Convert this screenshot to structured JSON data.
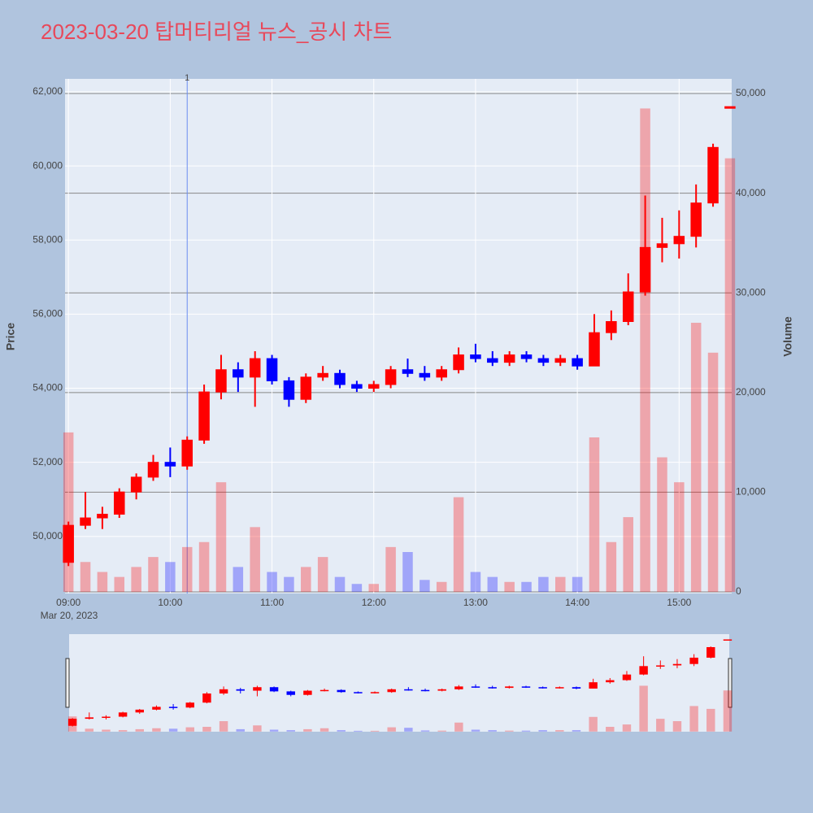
{
  "chart_data": {
    "type": "candlestick",
    "title": "2023-03-20 탑머티리얼 뉴스_공시 차트",
    "y_label": "Price",
    "y2_label": "Volume",
    "date_label": "Mar 20, 2023",
    "increasing_color": "#ff0000",
    "decreasing_color": "#0000ff",
    "x": [
      "09:00",
      "09:10",
      "09:20",
      "09:30",
      "09:40",
      "09:50",
      "10:00",
      "10:10",
      "10:20",
      "10:30",
      "10:40",
      "10:50",
      "11:00",
      "11:10",
      "11:20",
      "11:30",
      "11:40",
      "11:50",
      "12:00",
      "12:10",
      "12:20",
      "12:30",
      "12:40",
      "12:50",
      "13:00",
      "13:10",
      "13:20",
      "13:30",
      "13:40",
      "13:50",
      "14:00",
      "14:10",
      "14:20",
      "14:30",
      "14:40",
      "14:50",
      "15:00",
      "15:10",
      "15:20",
      "15:30"
    ],
    "open": [
      49300,
      50300,
      50500,
      50600,
      51200,
      51600,
      52000,
      51900,
      52600,
      53900,
      54500,
      54300,
      54800,
      54200,
      53700,
      54300,
      54400,
      54100,
      54000,
      54100,
      54500,
      54400,
      54300,
      54500,
      54900,
      54800,
      54700,
      54900,
      54800,
      54700,
      54800,
      54600,
      55500,
      55800,
      56600,
      57800,
      57900,
      58100,
      59000,
      61600
    ],
    "high": [
      50400,
      51200,
      50800,
      51300,
      51700,
      52200,
      52400,
      52700,
      54100,
      54900,
      54700,
      55000,
      54900,
      54300,
      54400,
      54600,
      54500,
      54200,
      54200,
      54600,
      54800,
      54600,
      54600,
      55100,
      55200,
      55000,
      55000,
      55000,
      54900,
      54900,
      54900,
      56000,
      56100,
      57100,
      59200,
      58600,
      58800,
      59500,
      60600,
      61600
    ],
    "low": [
      49200,
      50200,
      50200,
      50500,
      51000,
      51500,
      51600,
      51800,
      52500,
      53700,
      53900,
      53500,
      54100,
      53500,
      53600,
      54200,
      54000,
      53900,
      53900,
      54000,
      54300,
      54200,
      54200,
      54400,
      54700,
      54600,
      54600,
      54700,
      54600,
      54600,
      54500,
      54600,
      55300,
      55700,
      56500,
      57400,
      57500,
      57800,
      58900,
      61600
    ],
    "close": [
      50300,
      50500,
      50600,
      51200,
      51600,
      52000,
      51900,
      52600,
      53900,
      54500,
      54300,
      54800,
      54200,
      53700,
      54300,
      54400,
      54100,
      54000,
      54100,
      54500,
      54400,
      54300,
      54500,
      54900,
      54800,
      54700,
      54900,
      54800,
      54700,
      54800,
      54600,
      55500,
      55800,
      56600,
      57800,
      57900,
      58100,
      59000,
      60500,
      61600
    ],
    "volume": [
      16000,
      3000,
      2000,
      1500,
      2500,
      3500,
      3000,
      4500,
      5000,
      11000,
      2500,
      6500,
      2000,
      1500,
      2500,
      3500,
      1500,
      800,
      800,
      4500,
      4000,
      1200,
      1000,
      9500,
      2000,
      1500,
      1000,
      1000,
      1500,
      1500,
      1500,
      15500,
      5000,
      7500,
      48500,
      13500,
      11000,
      27000,
      24000,
      43500
    ],
    "xlim": [
      "08:58",
      "15:31"
    ],
    "xticks": [
      "09:00",
      "10:00",
      "11:00",
      "12:00",
      "13:00",
      "14:00",
      "15:00"
    ],
    "ylim": [
      48460,
      62350
    ],
    "yticks": [
      {
        "value": 50000,
        "label": "50,000"
      },
      {
        "value": 52000,
        "label": "52,000"
      },
      {
        "value": 54000,
        "label": "54,000"
      },
      {
        "value": 56000,
        "label": "56,000"
      },
      {
        "value": 58000,
        "label": "58,000"
      },
      {
        "value": 60000,
        "label": "60,000"
      },
      {
        "value": 62000,
        "label": "62,000"
      }
    ],
    "y2lim": [
      -160,
      51470
    ],
    "y2ticks": [
      0,
      {
        "value": 10000,
        "label": "10,000"
      },
      {
        "value": 20000,
        "label": "20,000"
      },
      {
        "value": 30000,
        "label": "30,000"
      },
      {
        "value": 40000,
        "label": "40,000"
      },
      {
        "value": 50000,
        "label": "50,000"
      }
    ],
    "annotations": [
      {
        "x": "10:10",
        "text": "1"
      }
    ]
  }
}
